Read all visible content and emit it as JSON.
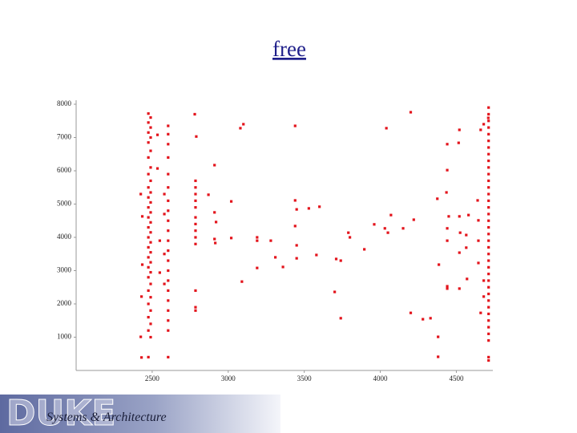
{
  "chart_data": {
    "type": "scatter",
    "title": "free",
    "color": "#e3141c",
    "xlim": [
      2000,
      4740
    ],
    "ylim": [
      0,
      8000
    ],
    "xticks": [
      2500,
      3000,
      3500,
      4000,
      4500
    ],
    "yticks": [
      1000,
      2000,
      3000,
      4000,
      5000,
      6000,
      7000,
      8000
    ],
    "x": [
      2475,
      2490,
      2475,
      2490,
      2475,
      2490,
      2475,
      2490,
      2475,
      2490,
      2475,
      2490,
      2475,
      2490,
      2475,
      2490,
      2475,
      2490,
      2475,
      2490,
      2475,
      2490,
      2475,
      2490,
      2475,
      2490,
      2475,
      2490,
      2475,
      2490,
      2475,
      2490,
      2475,
      2490,
      2475,
      2490,
      2475,
      2490,
      2475,
      2490,
      2475,
      2425,
      2435,
      2435,
      2430,
      2425,
      2430,
      2550,
      2550,
      2535,
      2535,
      2605,
      2605,
      2605,
      2605,
      2605,
      2605,
      2605,
      2605,
      2605,
      2605,
      2605,
      2605,
      2605,
      2605,
      2605,
      2605,
      2605,
      2605,
      2605,
      2605,
      2605,
      2580,
      2580,
      2580,
      2580,
      2785,
      2785,
      2785,
      2785,
      2785,
      2785,
      2785,
      2785,
      2785,
      2785,
      2785,
      2785,
      2785,
      2780,
      2790,
      2910,
      3080,
      3100,
      3440,
      4200,
      4040,
      4440,
      4520,
      4515,
      4660,
      4680,
      4710,
      4440,
      3020,
      2870,
      3440,
      3450,
      3530,
      3600,
      2910,
      2920,
      3190,
      3190,
      3020,
      2910,
      2915,
      3280,
      3440,
      3450,
      3450,
      3310,
      3190,
      3360,
      3090,
      3580,
      3710,
      3740,
      3700,
      3740,
      3790,
      3800,
      3895,
      3960,
      4030,
      4050,
      4070,
      4150,
      4220,
      4200,
      4280,
      4330,
      4380,
      4380,
      4385,
      4375,
      4435,
      4450,
      4440,
      4440,
      4440,
      4440,
      4520,
      4525,
      4520,
      4520,
      4580,
      4565,
      4565,
      4570,
      4640,
      4645,
      4645,
      4645,
      4660,
      4680,
      4680,
      4712,
      4712,
      4712,
      4712,
      4712,
      4712,
      4712,
      4712,
      4712,
      4712,
      4712,
      4712,
      4712,
      4712,
      4712,
      4712,
      4712,
      4712,
      4712,
      4712,
      4712,
      4712,
      4712,
      4712,
      4712,
      4712,
      4712,
      4712,
      4712,
      4712,
      4712,
      4712,
      4712,
      4712,
      4712,
      4712,
      4712,
      4712
    ],
    "values": [
      7720,
      7600,
      7450,
      7300,
      7150,
      7000,
      6850,
      6600,
      6400,
      6100,
      5900,
      5700,
      5500,
      5350,
      5200,
      5050,
      4900,
      4750,
      4600,
      4450,
      4300,
      4150,
      4000,
      3850,
      3700,
      3550,
      3400,
      3250,
      3100,
      2950,
      2800,
      2600,
      2400,
      2200,
      2000,
      1800,
      1600,
      1400,
      1200,
      1000,
      400,
      5300,
      4630,
      3180,
      2220,
      1010,
      390,
      2940,
      3900,
      6070,
      7080,
      7350,
      7100,
      6800,
      6400,
      5900,
      5500,
      5100,
      4800,
      4500,
      4200,
      3900,
      3600,
      3300,
      3000,
      2700,
      2400,
      2100,
      1800,
      1500,
      1200,
      400,
      5300,
      4700,
      3500,
      2600,
      5700,
      5500,
      5300,
      5100,
      4900,
      4600,
      4400,
      4200,
      4000,
      3800,
      2400,
      1900,
      1800,
      7700,
      7030,
      6170,
      7280,
      7400,
      7350,
      7760,
      7280,
      6800,
      7230,
      6840,
      7230,
      7400,
      7590,
      6020,
      5080,
      5280,
      5110,
      4840,
      4870,
      4920,
      4750,
      4460,
      4000,
      3900,
      3980,
      3950,
      3830,
      3900,
      4340,
      3760,
      3370,
      3400,
      3080,
      3110,
      2670,
      3470,
      3350,
      3300,
      2360,
      1570,
      4140,
      4000,
      3640,
      4390,
      4270,
      4140,
      4670,
      4270,
      4530,
      1730,
      1540,
      1570,
      1010,
      410,
      3180,
      5160,
      5350,
      4630,
      4270,
      3900,
      2530,
      2460,
      4630,
      4140,
      3540,
      2460,
      4670,
      4070,
      3690,
      2750,
      5110,
      4510,
      3900,
      3230,
      1730,
      2700,
      2220,
      7900,
      7700,
      7500,
      7300,
      7100,
      6900,
      6700,
      6500,
      6300,
      6100,
      5900,
      5700,
      5500,
      5300,
      5100,
      4900,
      4700,
      4500,
      4300,
      4100,
      3900,
      3700,
      3500,
      3300,
      3100,
      2900,
      2700,
      2500,
      2300,
      2100,
      1900,
      1700,
      1500,
      1300,
      1100,
      900,
      400,
      300
    ]
  },
  "footer": {
    "logo": "DUKE",
    "subtitle": "Systems & Architecture"
  }
}
